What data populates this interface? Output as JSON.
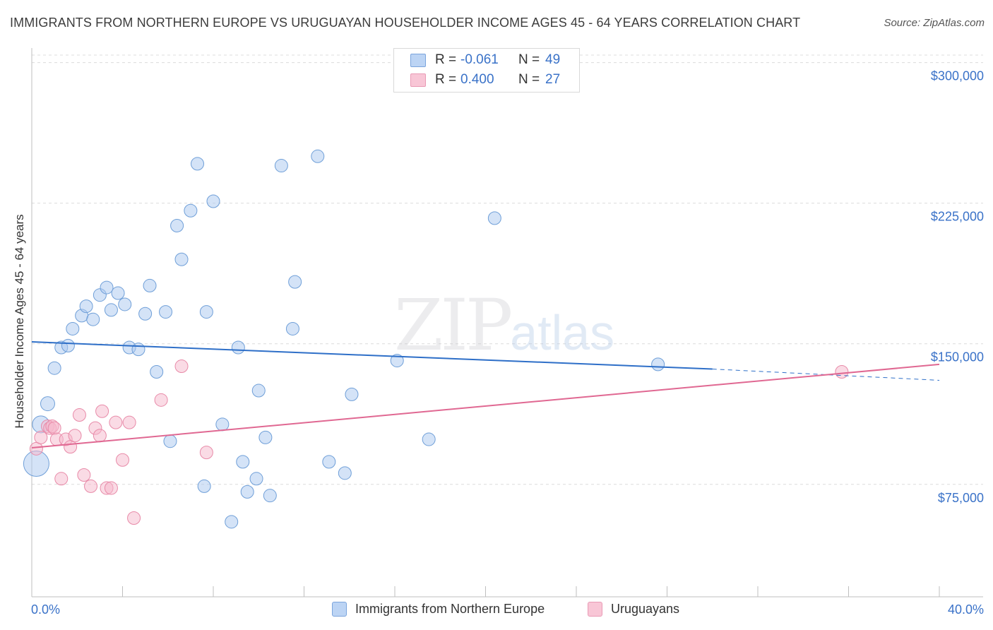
{
  "title": "IMMIGRANTS FROM NORTHERN EUROPE VS URUGUAYAN HOUSEHOLDER INCOME AGES 45 - 64 YEARS CORRELATION CHART",
  "source": "Source: ZipAtlas.com",
  "watermark": {
    "zip": "ZIP",
    "atlas": "atlas"
  },
  "stats": [
    {
      "r_label": "R =",
      "r_value": "-0.061",
      "n_label": "N =",
      "n_value": "49"
    },
    {
      "r_label": "R =",
      "r_value": "0.400",
      "n_label": "N =",
      "n_value": "27"
    }
  ],
  "legend": {
    "series1": "Immigrants from Northern Europe",
    "series2": "Uruguayans"
  },
  "colors": {
    "series1_fill": "#aac8f0",
    "series1_stroke": "#6f9fd8",
    "series1_line": "#2e6fc8",
    "series2_fill": "#f5b8cc",
    "series2_stroke": "#e88aa8",
    "series2_line": "#e06892",
    "axis_label": "#3a72c8",
    "grid": "#dcdcdc"
  },
  "chart_data": {
    "type": "scatter",
    "xlabel": "",
    "ylabel": "Householder Income Ages 45 - 64 years",
    "xlim": [
      0,
      40
    ],
    "ylim": [
      15000,
      307000
    ],
    "x_tick_labels": [
      "0.0%",
      "40.0%"
    ],
    "y_ticks": [
      75000,
      150000,
      225000,
      300000
    ],
    "y_tick_labels": [
      "$75,000",
      "$150,000",
      "$225,000",
      "$300,000"
    ],
    "series": [
      {
        "name": "Immigrants from Northern Europe",
        "points": [
          [
            0.2,
            86000,
            18
          ],
          [
            0.4,
            107000,
            12
          ],
          [
            0.7,
            118000,
            10
          ],
          [
            1.0,
            137000,
            9
          ],
          [
            1.3,
            148000,
            9
          ],
          [
            1.6,
            149000,
            9
          ],
          [
            1.8,
            158000,
            9
          ],
          [
            2.2,
            165000,
            9
          ],
          [
            2.4,
            170000,
            9
          ],
          [
            2.7,
            163000,
            9
          ],
          [
            3.0,
            176000,
            9
          ],
          [
            3.3,
            180000,
            9
          ],
          [
            3.5,
            168000,
            9
          ],
          [
            3.8,
            177000,
            9
          ],
          [
            4.1,
            171000,
            9
          ],
          [
            4.3,
            148000,
            9
          ],
          [
            4.7,
            147000,
            9
          ],
          [
            5.0,
            166000,
            9
          ],
          [
            5.2,
            181000,
            9
          ],
          [
            5.5,
            135000,
            9
          ],
          [
            5.9,
            167000,
            9
          ],
          [
            6.1,
            98000,
            9
          ],
          [
            6.4,
            213000,
            9
          ],
          [
            6.6,
            195000,
            9
          ],
          [
            7.0,
            221000,
            9
          ],
          [
            7.3,
            246000,
            9
          ],
          [
            7.6,
            74000,
            9
          ],
          [
            7.7,
            167000,
            9
          ],
          [
            8.0,
            226000,
            9
          ],
          [
            8.4,
            107000,
            9
          ],
          [
            8.8,
            55000,
            9
          ],
          [
            9.1,
            148000,
            9
          ],
          [
            9.3,
            87000,
            9
          ],
          [
            9.5,
            71000,
            9
          ],
          [
            9.9,
            78000,
            9
          ],
          [
            10.0,
            125000,
            9
          ],
          [
            10.3,
            100000,
            9
          ],
          [
            10.5,
            69000,
            9
          ],
          [
            11.0,
            245000,
            9
          ],
          [
            11.5,
            158000,
            9
          ],
          [
            11.6,
            183000,
            9
          ],
          [
            12.6,
            250000,
            9
          ],
          [
            13.1,
            87000,
            9
          ],
          [
            13.8,
            81000,
            9
          ],
          [
            14.1,
            123000,
            9
          ],
          [
            16.1,
            141000,
            9
          ],
          [
            17.5,
            99000,
            9
          ],
          [
            20.4,
            217000,
            9
          ],
          [
            27.6,
            139000,
            9
          ]
        ],
        "trend": {
          "x0": 0,
          "y0": 151000,
          "x1": 30.0,
          "y1": 136500,
          "dash_x1": 40,
          "dash_y1": 130500
        }
      },
      {
        "name": "Uruguayans",
        "points": [
          [
            0.2,
            94000,
            9
          ],
          [
            0.4,
            100000,
            9
          ],
          [
            0.7,
            106000,
            9
          ],
          [
            0.8,
            105000,
            9
          ],
          [
            0.9,
            106000,
            9
          ],
          [
            1.0,
            105000,
            9
          ],
          [
            1.1,
            99000,
            9
          ],
          [
            1.3,
            78000,
            9
          ],
          [
            1.5,
            99000,
            9
          ],
          [
            1.7,
            95000,
            9
          ],
          [
            1.9,
            101000,
            9
          ],
          [
            2.1,
            112000,
            9
          ],
          [
            2.3,
            80000,
            9
          ],
          [
            2.6,
            74000,
            9
          ],
          [
            2.8,
            105000,
            9
          ],
          [
            3.0,
            101000,
            9
          ],
          [
            3.1,
            114000,
            9
          ],
          [
            3.3,
            73000,
            9
          ],
          [
            3.5,
            73000,
            9
          ],
          [
            3.7,
            108000,
            9
          ],
          [
            4.0,
            88000,
            9
          ],
          [
            4.3,
            108000,
            9
          ],
          [
            4.5,
            57000,
            9
          ],
          [
            5.7,
            120000,
            9
          ],
          [
            6.6,
            138000,
            9
          ],
          [
            7.7,
            92000,
            9
          ],
          [
            35.7,
            135000,
            9
          ]
        ],
        "trend": {
          "x0": 0,
          "y0": 94500,
          "x1": 40,
          "y1": 139000
        }
      }
    ]
  }
}
